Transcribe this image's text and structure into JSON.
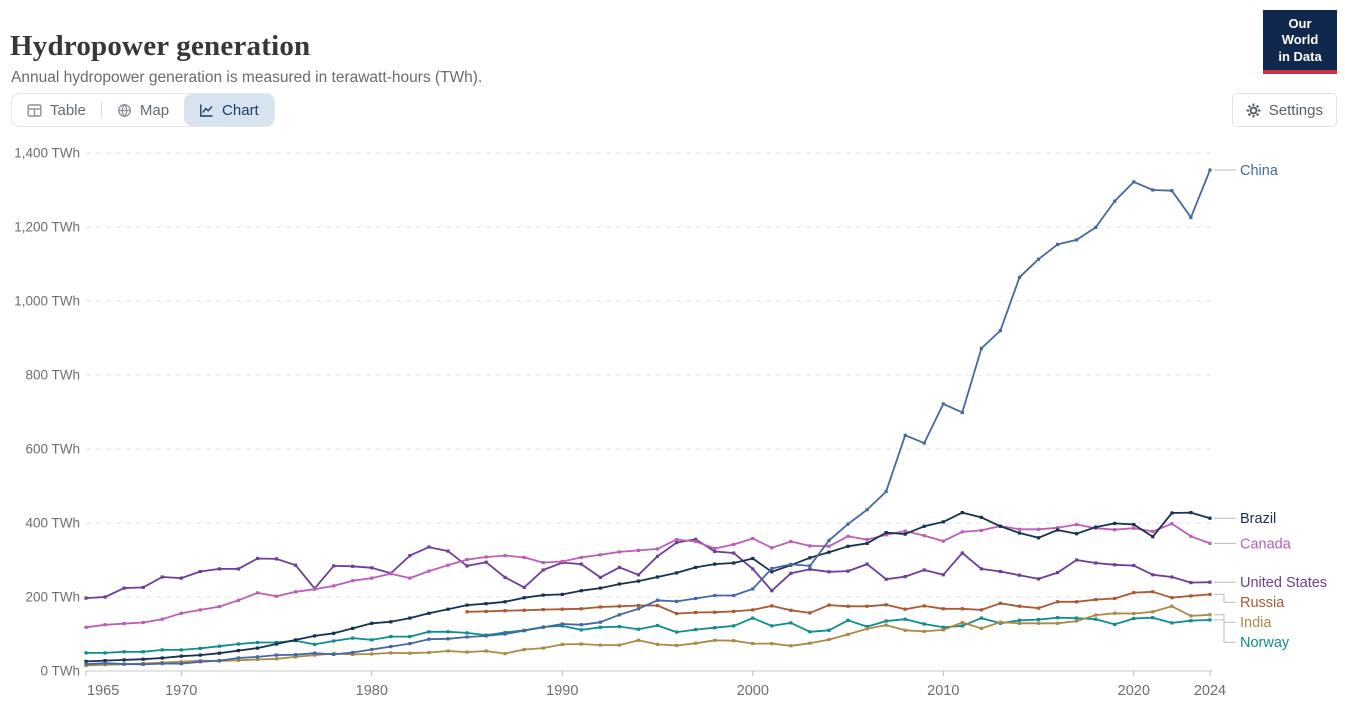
{
  "header": {
    "title": "Hydropower generation",
    "subtitle": "Annual hydropower generation is measured in terawatt-hours (TWh).",
    "logo": {
      "line1": "Our World",
      "line2": "in Data",
      "bg_color": "#10284e",
      "stripe_color": "#cb3043"
    }
  },
  "toolbar": {
    "tabs": [
      {
        "label": "Table",
        "icon": "table-icon",
        "active": false
      },
      {
        "label": "Map",
        "icon": "globe-icon",
        "active": false
      },
      {
        "label": "Chart",
        "icon": "line-chart-icon",
        "active": true
      }
    ],
    "settings_label": "Settings",
    "active_tab_bg": "#d8e3f0",
    "active_tab_color": "#1d3d63"
  },
  "chart_data": {
    "type": "line",
    "unit": "TWh",
    "xlim": [
      1965,
      2024
    ],
    "ylim": [
      0,
      1400
    ],
    "grid": "horizontal-dashed",
    "legend_position": "right-end-labels",
    "x_ticks": [
      {
        "value": 1965,
        "label": "1965"
      },
      {
        "value": 1970,
        "label": "1970"
      },
      {
        "value": 1980,
        "label": "1980"
      },
      {
        "value": 1990,
        "label": "1990"
      },
      {
        "value": 2000,
        "label": "2000"
      },
      {
        "value": 2010,
        "label": "2010"
      },
      {
        "value": 2020,
        "label": "2020"
      },
      {
        "value": 2024,
        "label": "2024"
      }
    ],
    "y_ticks": [
      {
        "value": 0,
        "label": "0 TWh"
      },
      {
        "value": 200,
        "label": "200 TWh"
      },
      {
        "value": 400,
        "label": "400 TWh"
      },
      {
        "value": 600,
        "label": "600 TWh"
      },
      {
        "value": 800,
        "label": "800 TWh"
      },
      {
        "value": 1000,
        "label": "1,000 TWh"
      },
      {
        "value": 1200,
        "label": "1,200 TWh"
      },
      {
        "value": 1400,
        "label": "1,400 TWh"
      }
    ],
    "series": [
      {
        "name": "China",
        "color": "#4668a2",
        "start_year": 1965,
        "values": [
          19,
          21,
          19,
          18,
          20,
          20,
          25,
          28,
          35,
          38,
          43,
          44,
          48,
          45,
          50,
          58,
          66,
          74,
          86,
          87,
          92,
          95,
          100,
          109,
          118,
          127,
          125,
          132,
          152,
          168,
          191,
          188,
          196,
          204,
          204,
          222,
          277,
          288,
          284,
          353,
          397,
          436,
          485,
          637,
          616,
          722,
          699,
          872,
          920,
          1064,
          1113,
          1153,
          1165,
          1199,
          1270,
          1322,
          1300,
          1298,
          1226,
          1354
        ]
      },
      {
        "name": "Brazil",
        "color": "#163152",
        "start_year": 1965,
        "values": [
          26,
          28,
          30,
          32,
          35,
          40,
          43,
          48,
          55,
          62,
          73,
          84,
          95,
          102,
          115,
          129,
          133,
          143,
          156,
          167,
          178,
          182,
          187,
          198,
          205,
          207,
          217,
          224,
          235,
          243,
          254,
          265,
          280,
          289,
          292,
          304,
          268,
          286,
          306,
          321,
          337,
          345,
          374,
          370,
          391,
          403,
          428,
          415,
          391,
          373,
          360,
          381,
          371,
          389,
          399,
          396,
          363,
          427,
          428,
          413
        ]
      },
      {
        "name": "Canada",
        "color": "#bc5fb4",
        "start_year": 1965,
        "values": [
          118,
          125,
          128,
          131,
          140,
          156,
          165,
          174,
          191,
          211,
          202,
          214,
          221,
          230,
          244,
          251,
          263,
          251,
          270,
          286,
          301,
          308,
          312,
          307,
          293,
          296,
          307,
          314,
          322,
          326,
          330,
          355,
          350,
          331,
          342,
          358,
          333,
          350,
          338,
          337,
          364,
          355,
          368,
          378,
          366,
          351,
          376,
          380,
          392,
          383,
          383,
          387,
          396,
          386,
          382,
          386,
          377,
          398,
          364,
          345
        ]
      },
      {
        "name": "United States",
        "color": "#6d3e98",
        "start_year": 1965,
        "values": [
          197,
          200,
          224,
          226,
          254,
          251,
          269,
          276,
          276,
          304,
          303,
          286,
          223,
          284,
          283,
          279,
          264,
          312,
          335,
          324,
          284,
          294,
          253,
          226,
          273,
          293,
          289,
          253,
          280,
          260,
          310,
          347,
          356,
          323,
          319,
          276,
          217,
          264,
          275,
          268,
          270,
          289,
          248,
          255,
          273,
          260,
          319,
          276,
          269,
          259,
          249,
          266,
          300,
          292,
          287,
          285,
          260,
          254,
          239,
          240
        ]
      },
      {
        "name": "Russia",
        "color": "#a85a32",
        "start_year": 1985,
        "values": [
          160,
          161,
          163,
          164,
          166,
          167,
          168,
          173,
          175,
          177,
          177,
          155,
          158,
          159,
          161,
          165,
          176,
          164,
          157,
          178,
          175,
          175,
          179,
          167,
          176,
          168,
          168,
          165,
          183,
          175,
          170,
          187,
          187,
          193,
          196,
          212,
          214,
          198,
          203,
          207
        ]
      },
      {
        "name": "India",
        "color": "#ab8a47",
        "start_year": 1965,
        "values": [
          15,
          17,
          18,
          20,
          23,
          25,
          28,
          27,
          29,
          31,
          33,
          38,
          43,
          47,
          45,
          46,
          49,
          48,
          50,
          54,
          51,
          54,
          47,
          58,
          62,
          72,
          73,
          70,
          70,
          83,
          72,
          69,
          75,
          83,
          82,
          74,
          74,
          68,
          75,
          85,
          99,
          114,
          124,
          110,
          107,
          111,
          131,
          115,
          132,
          129,
          129,
          129,
          135,
          151,
          156,
          155,
          160,
          175,
          149,
          152
        ]
      },
      {
        "name": "Norway",
        "color": "#0f8d91",
        "start_year": 1965,
        "values": [
          49,
          49,
          52,
          52,
          57,
          57,
          61,
          67,
          73,
          77,
          77,
          82,
          72,
          81,
          89,
          84,
          93,
          93,
          106,
          106,
          103,
          97,
          104,
          110,
          119,
          122,
          111,
          118,
          120,
          113,
          123,
          105,
          112,
          117,
          122,
          143,
          122,
          130,
          106,
          110,
          137,
          120,
          135,
          140,
          127,
          118,
          122,
          143,
          129,
          137,
          139,
          144,
          143,
          140,
          126,
          142,
          144,
          130,
          136,
          138
        ]
      }
    ]
  }
}
